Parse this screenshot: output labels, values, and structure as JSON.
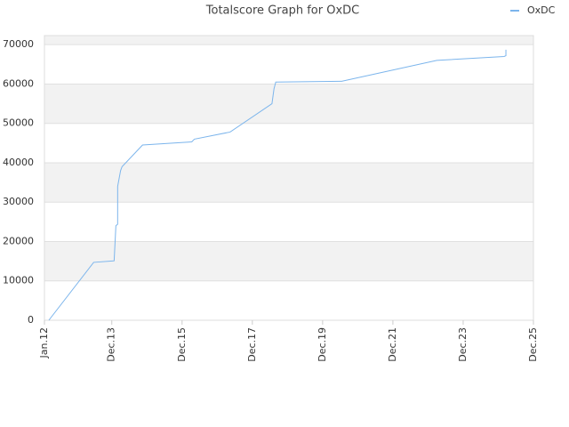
{
  "chart_data": {
    "type": "line",
    "title": "Totalscore Graph for OxDC",
    "x": [
      1.5,
      16.8,
      23.8,
      24.4,
      25,
      25,
      26,
      26.5,
      33.5,
      50.3,
      51.2,
      63.4,
      77.7,
      78.4,
      79,
      101.5,
      134,
      157,
      157.6,
      157.6
    ],
    "series": [
      {
        "name": "OxDC",
        "color": "#7cb5ec",
        "values": [
          0,
          14700,
          15100,
          24000,
          24400,
          34000,
          38000,
          39000,
          44500,
          45300,
          46000,
          47800,
          55000,
          58800,
          60500,
          60700,
          66000,
          67000,
          67200,
          68700
        ]
      }
    ],
    "xlim": [
      0,
      167
    ],
    "xticks": [
      {
        "value": 0,
        "label": "Jan.12"
      },
      {
        "value": 23,
        "label": "Dec.13"
      },
      {
        "value": 47,
        "label": "Dec.15"
      },
      {
        "value": 71,
        "label": "Dec.17"
      },
      {
        "value": 95,
        "label": "Dec.19"
      },
      {
        "value": 119,
        "label": "Dec.21"
      },
      {
        "value": 143,
        "label": "Dec.23"
      },
      {
        "value": 167,
        "label": "Dec.25"
      }
    ],
    "ylim": [
      0,
      72300
    ],
    "yticks": [
      0,
      10000,
      20000,
      30000,
      40000,
      50000,
      60000,
      70000
    ],
    "grid": true,
    "legend": "top-right"
  }
}
